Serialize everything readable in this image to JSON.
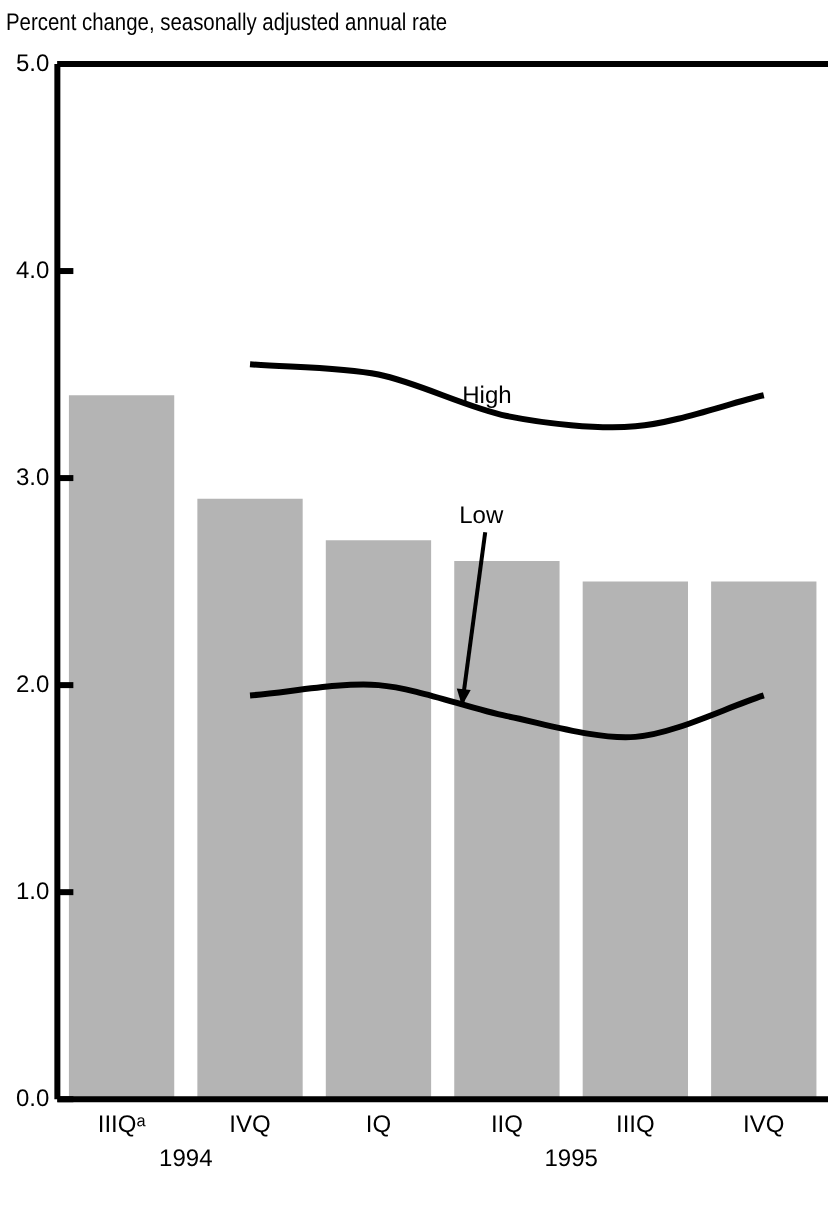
{
  "chart_data": {
    "type": "bar",
    "ylabel": "Percent change, seasonally adjusted annual rate",
    "categories": [
      "IIIQᵃ",
      "IVQ",
      "IQ",
      "IIQ",
      "IIIQ",
      "IVQ"
    ],
    "series": [
      {
        "color": "#b4b4b4",
        "values": [
          3.4,
          2.9,
          2.7,
          2.6,
          2.5,
          2.5
        ]
      },
      {
        "type": "line",
        "name": "High",
        "color": "#000000",
        "values": [
          null,
          3.55,
          3.5,
          3.3,
          3.25,
          3.4
        ]
      },
      {
        "type": "line",
        "name": "Low",
        "color": "#000000",
        "values": [
          null,
          1.95,
          2.0,
          1.85,
          1.75,
          1.95
        ]
      }
    ],
    "ylim": [
      0,
      5
    ],
    "yticks": [
      {
        "value": 0,
        "label": "0.0"
      },
      {
        "value": 1,
        "label": "1.0"
      },
      {
        "value": 2,
        "label": "2.0"
      },
      {
        "value": 3,
        "label": "3.0"
      },
      {
        "value": 4,
        "label": "4.0"
      },
      {
        "value": 5,
        "label": "5.0"
      }
    ],
    "annotations": [
      "1994",
      "1995"
    ],
    "grid": false,
    "legend": false,
    "marker": "none",
    "line_style": "solid"
  }
}
